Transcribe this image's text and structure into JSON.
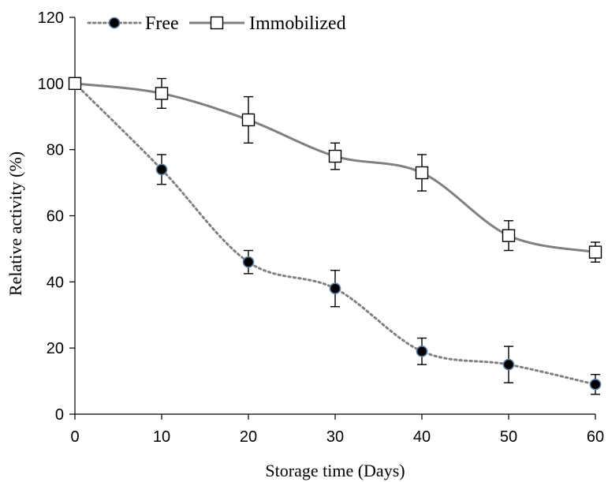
{
  "chart_data": {
    "type": "line",
    "title": "",
    "xlabel": "Storage time (Days)",
    "ylabel": "Relative activity (%)",
    "xlim": [
      0,
      60
    ],
    "ylim": [
      0,
      120
    ],
    "x_ticks": [
      0,
      10,
      20,
      30,
      40,
      50,
      60
    ],
    "y_ticks": [
      0,
      20,
      40,
      60,
      80,
      100,
      120
    ],
    "grid": false,
    "legend_position": "top-left",
    "x": [
      0,
      10,
      20,
      30,
      40,
      50,
      60
    ],
    "series": [
      {
        "name": "Free",
        "values": [
          100,
          74,
          46,
          38,
          19,
          15,
          9
        ],
        "errors": [
          0,
          4.5,
          3.5,
          5.5,
          4,
          5.5,
          3
        ],
        "line_style": "dotted",
        "marker": "filled-circle",
        "line_color": "#808080",
        "marker_fill": "#000000",
        "marker_edge": "#5b7fa6"
      },
      {
        "name": "Immobilized",
        "values": [
          100,
          97,
          89,
          78,
          73,
          54,
          49
        ],
        "errors": [
          0,
          4.5,
          7,
          4,
          5.5,
          4.5,
          3
        ],
        "line_style": "solid",
        "marker": "open-square",
        "line_color": "#808080",
        "marker_fill": "#ffffff",
        "marker_edge": "#000000"
      }
    ]
  }
}
